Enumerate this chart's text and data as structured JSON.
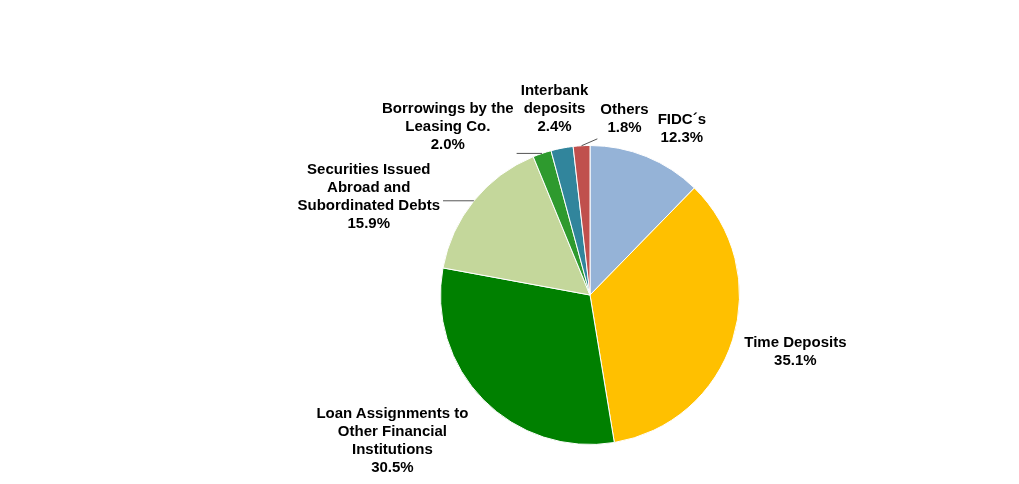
{
  "chart_data": {
    "type": "pie",
    "categories": [
      "FIDC´s",
      "Time Deposits",
      "Loan Assignments to Other Financial Institutions",
      "Securities Issued Abroad and Subordinated Debts",
      "Borrowings by the Leasing Co.",
      "Interbank deposits",
      "Others"
    ],
    "values": [
      12.3,
      35.1,
      30.5,
      15.9,
      2.0,
      2.4,
      1.8
    ],
    "colors": [
      "#95b3d7",
      "#ffc000",
      "#008000",
      "#c4d79b",
      "#2e9a2e",
      "#31859c",
      "#c0504d"
    ],
    "value_labels": [
      "12.3%",
      "35.1%",
      "30.5%",
      "15.9%",
      "2.0%",
      "2.4%",
      "1.8%"
    ],
    "data_labels": true,
    "legend": false
  }
}
